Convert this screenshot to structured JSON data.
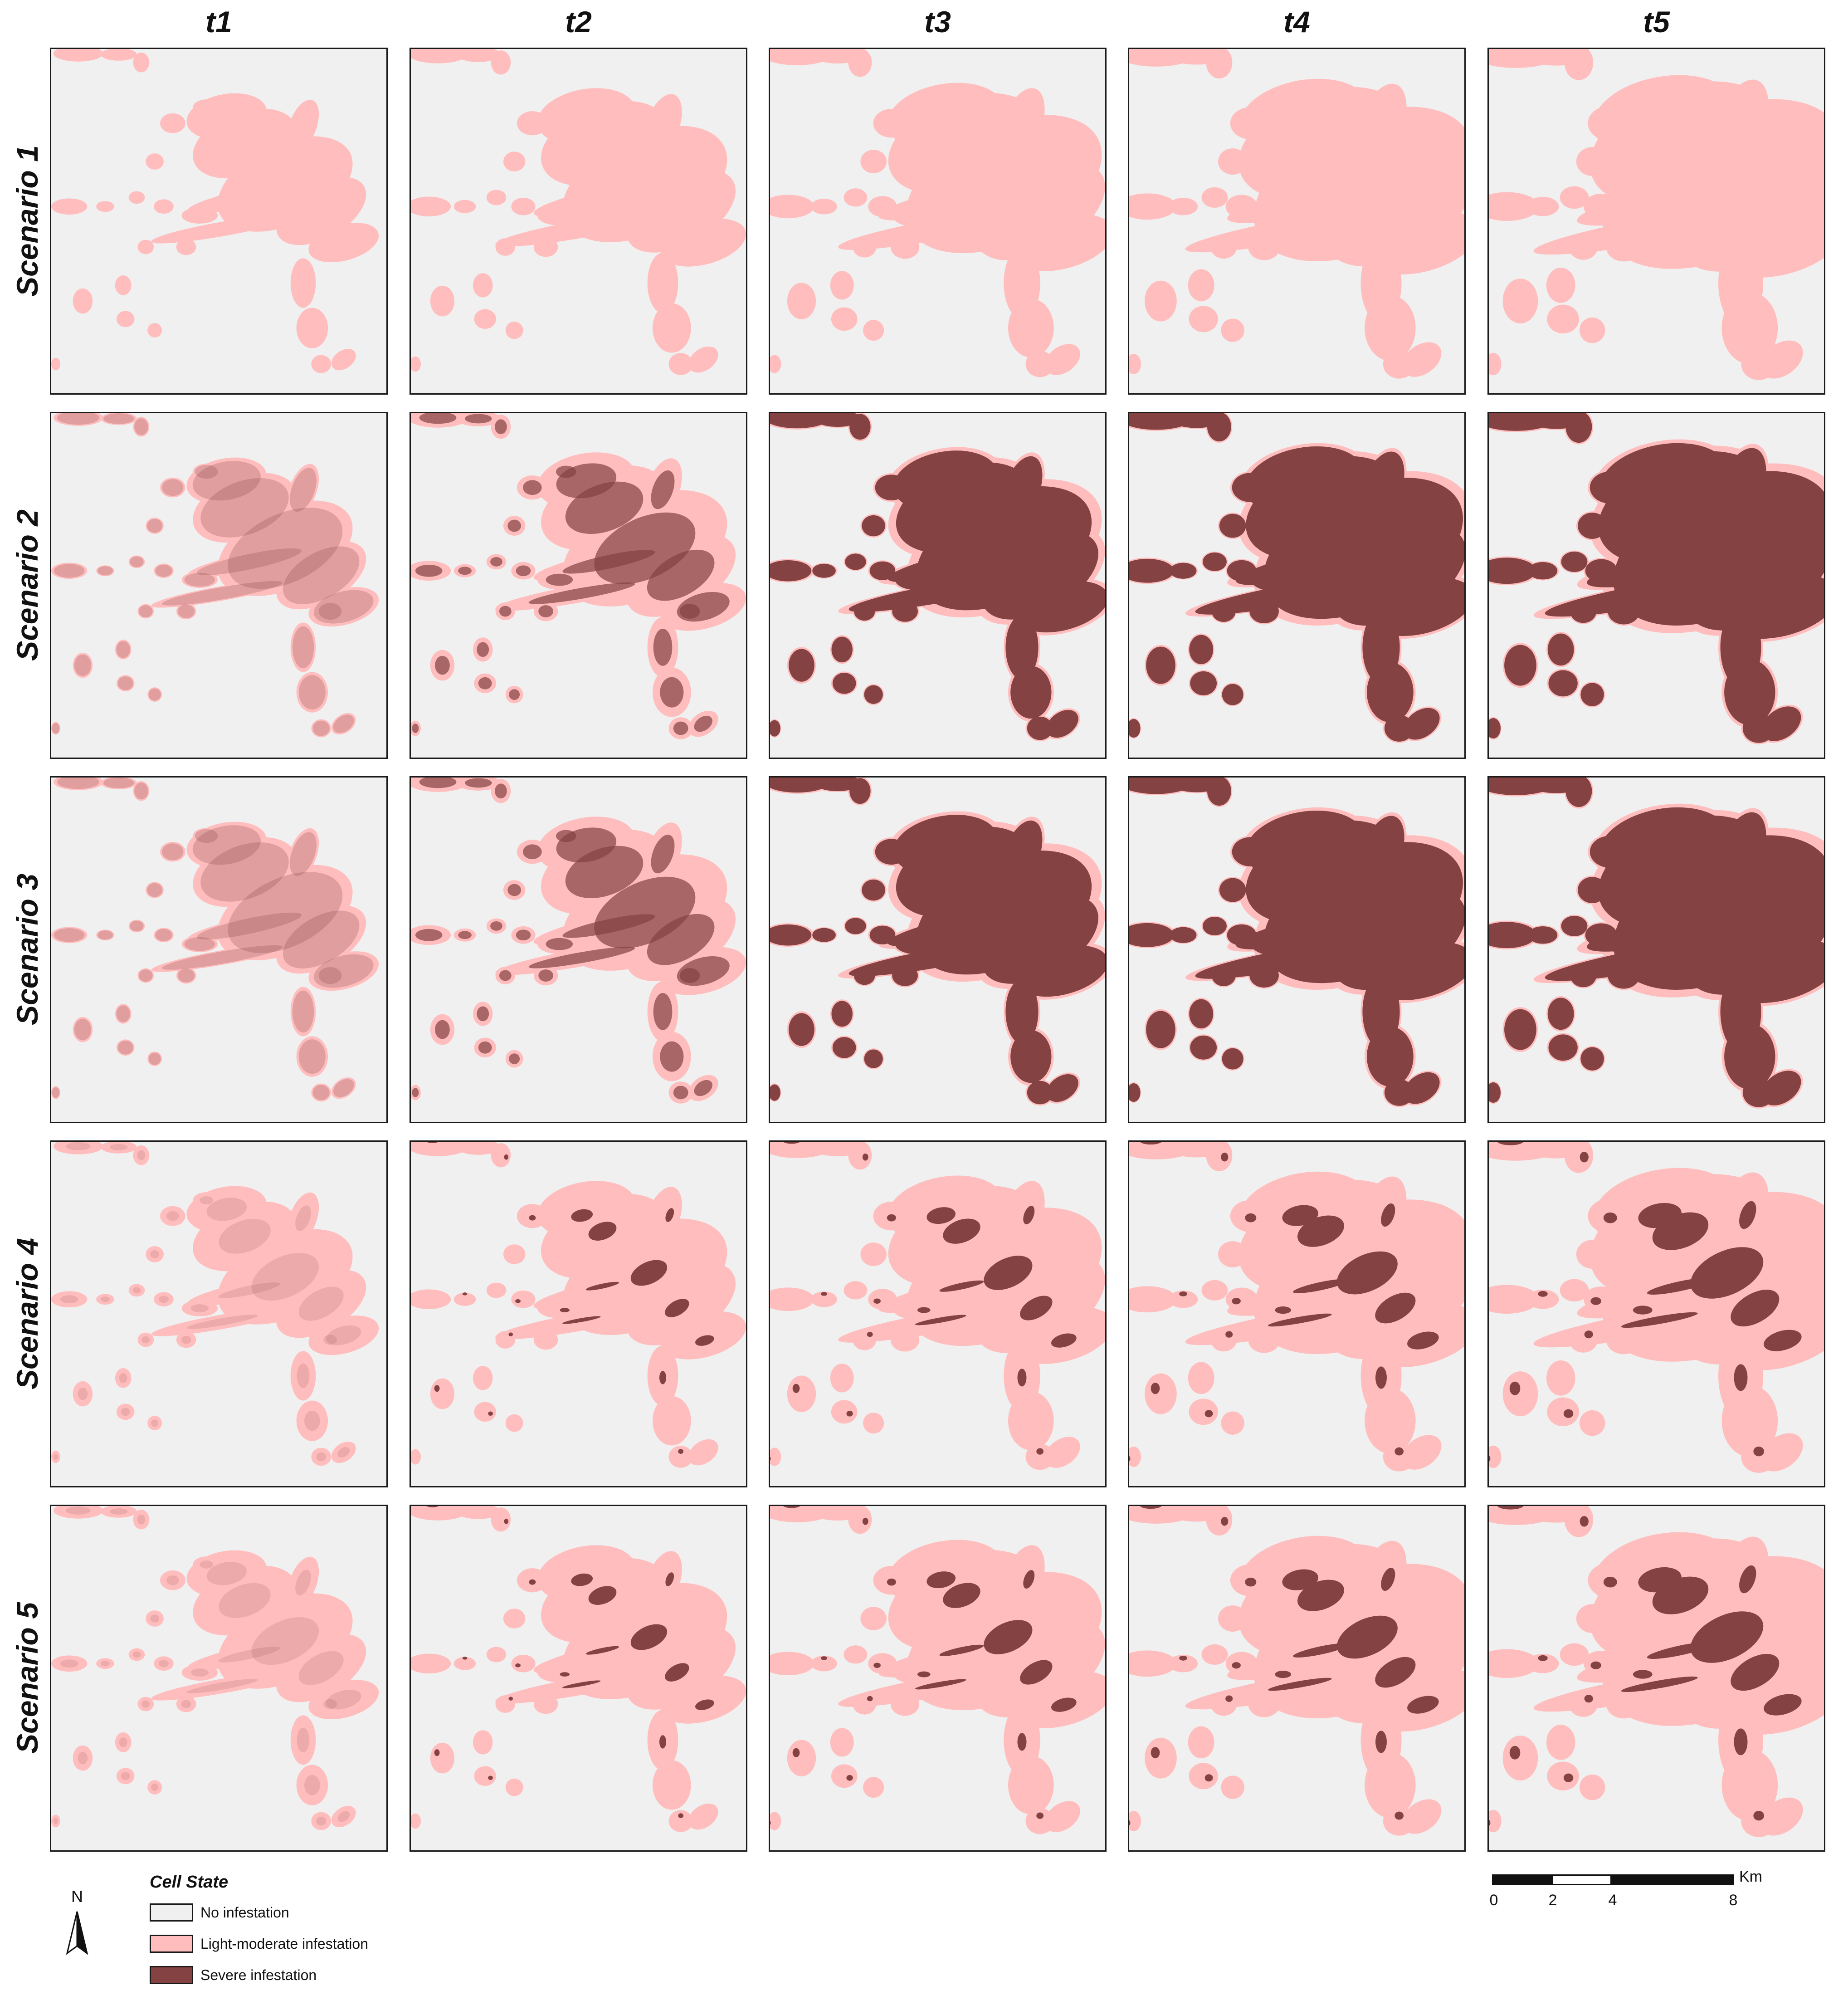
{
  "columns": [
    "t1",
    "t2",
    "t3",
    "t4",
    "t5"
  ],
  "rows": [
    "Scenario 1",
    "Scenario 2",
    "Scenario 3",
    "Scenario 4",
    "Scenario 5"
  ],
  "legend": {
    "title": "Cell State",
    "items": [
      {
        "label": "No infestation",
        "color": "#f0f0f0"
      },
      {
        "label": "Light-moderate infestation",
        "color": "#ffbdbd"
      },
      {
        "label": "Severe infestation",
        "color": "#854242"
      }
    ]
  },
  "north_arrow": {
    "label": "N"
  },
  "scale_bar": {
    "ticks": [
      "0",
      "2",
      "4",
      "8"
    ],
    "unit": "Km"
  },
  "colors": {
    "no_infestation": "#f0f0f0",
    "light": "#ffbdbd",
    "severe": "#854242"
  }
}
